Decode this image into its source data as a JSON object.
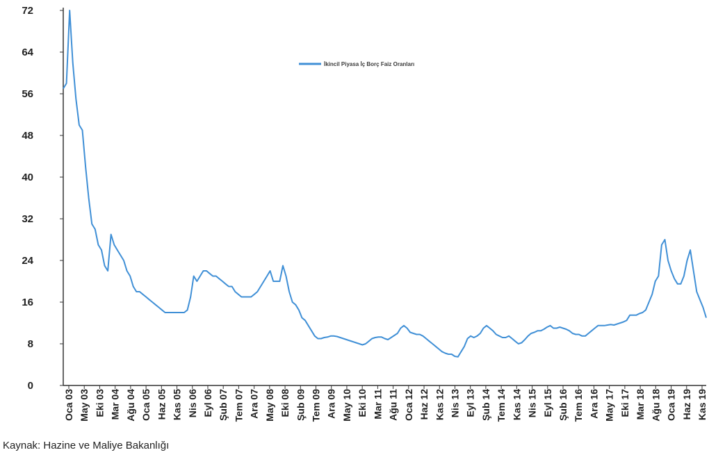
{
  "chart_data": {
    "type": "line",
    "title": "",
    "xlabel": "",
    "ylabel": "",
    "ylim": [
      0,
      72
    ],
    "yticks": [
      0,
      8,
      16,
      24,
      32,
      40,
      48,
      56,
      64,
      72
    ],
    "xlim": [
      "2003-01",
      "2019-11"
    ],
    "grid": false,
    "legend_position": "top-center",
    "x_tick_labels": [
      "Oca 03",
      "May 03",
      "Eki 03",
      "Mar 04",
      "Ağu 04",
      "Oca 05",
      "Haz 05",
      "Kas 05",
      "Nis 06",
      "Eyl 06",
      "Şub 07",
      "Tem 07",
      "Ara 07",
      "May 08",
      "Eki 08",
      "Şub 09",
      "Tem 09",
      "Ara 09",
      "May 10",
      "Eki 10",
      "Mar 11",
      "Ağu 11",
      "Oca 12",
      "Haz 12",
      "Kas 12",
      "Nis 13",
      "Eyl 13",
      "Şub 14",
      "Tem 14",
      "Kas 14",
      "Nis 15",
      "Eyl 15",
      "Şub 16",
      "Tem 16",
      "Ara 16",
      "May 17",
      "Eki 17",
      "Mar 18",
      "Ağu 18",
      "Oca 19",
      "Haz 19",
      "Kas 19"
    ],
    "series": [
      {
        "name": "İkincil Piyasa İç Borç Faiz Oranları",
        "color": "#3f8fd6",
        "points": [
          [
            "2003-01",
            57
          ],
          [
            "2003-02",
            58
          ],
          [
            "2003-03",
            72
          ],
          [
            "2003-04",
            62
          ],
          [
            "2003-05",
            55
          ],
          [
            "2003-06",
            50
          ],
          [
            "2003-07",
            49
          ],
          [
            "2003-08",
            42
          ],
          [
            "2003-09",
            36
          ],
          [
            "2003-10",
            31
          ],
          [
            "2003-11",
            30
          ],
          [
            "2003-12",
            27
          ],
          [
            "2004-01",
            26
          ],
          [
            "2004-02",
            23
          ],
          [
            "2004-03",
            22
          ],
          [
            "2004-04",
            29
          ],
          [
            "2004-05",
            27
          ],
          [
            "2004-06",
            26
          ],
          [
            "2004-07",
            25
          ],
          [
            "2004-08",
            24
          ],
          [
            "2004-09",
            22
          ],
          [
            "2004-10",
            21
          ],
          [
            "2004-11",
            19
          ],
          [
            "2004-12",
            18
          ],
          [
            "2005-01",
            18
          ],
          [
            "2005-02",
            17.5
          ],
          [
            "2005-03",
            17
          ],
          [
            "2005-04",
            16.5
          ],
          [
            "2005-05",
            16
          ],
          [
            "2005-06",
            15.5
          ],
          [
            "2005-07",
            15
          ],
          [
            "2005-08",
            14.5
          ],
          [
            "2005-09",
            14
          ],
          [
            "2005-10",
            14
          ],
          [
            "2005-11",
            14
          ],
          [
            "2005-12",
            14
          ],
          [
            "2006-01",
            14
          ],
          [
            "2006-02",
            14
          ],
          [
            "2006-03",
            14
          ],
          [
            "2006-04",
            14.5
          ],
          [
            "2006-05",
            17
          ],
          [
            "2006-06",
            21
          ],
          [
            "2006-07",
            20
          ],
          [
            "2006-08",
            21
          ],
          [
            "2006-09",
            22
          ],
          [
            "2006-10",
            22
          ],
          [
            "2006-11",
            21.5
          ],
          [
            "2006-12",
            21
          ],
          [
            "2007-01",
            21
          ],
          [
            "2007-02",
            20.5
          ],
          [
            "2007-03",
            20
          ],
          [
            "2007-04",
            19.5
          ],
          [
            "2007-05",
            19
          ],
          [
            "2007-06",
            19
          ],
          [
            "2007-07",
            18
          ],
          [
            "2007-08",
            17.5
          ],
          [
            "2007-09",
            17
          ],
          [
            "2007-10",
            17
          ],
          [
            "2007-11",
            17
          ],
          [
            "2007-12",
            17
          ],
          [
            "2008-01",
            17.5
          ],
          [
            "2008-02",
            18
          ],
          [
            "2008-03",
            19
          ],
          [
            "2008-04",
            20
          ],
          [
            "2008-05",
            21
          ],
          [
            "2008-06",
            22
          ],
          [
            "2008-07",
            20
          ],
          [
            "2008-08",
            20
          ],
          [
            "2008-09",
            20
          ],
          [
            "2008-10",
            23
          ],
          [
            "2008-11",
            21
          ],
          [
            "2008-12",
            18
          ],
          [
            "2009-01",
            16
          ],
          [
            "2009-02",
            15.5
          ],
          [
            "2009-03",
            14.5
          ],
          [
            "2009-04",
            13
          ],
          [
            "2009-05",
            12.5
          ],
          [
            "2009-06",
            11.5
          ],
          [
            "2009-07",
            10.5
          ],
          [
            "2009-08",
            9.5
          ],
          [
            "2009-09",
            9
          ],
          [
            "2009-10",
            9
          ],
          [
            "2009-11",
            9.2
          ],
          [
            "2009-12",
            9.3
          ],
          [
            "2010-01",
            9.5
          ],
          [
            "2010-02",
            9.5
          ],
          [
            "2010-03",
            9.4
          ],
          [
            "2010-04",
            9.2
          ],
          [
            "2010-05",
            9
          ],
          [
            "2010-06",
            8.8
          ],
          [
            "2010-07",
            8.6
          ],
          [
            "2010-08",
            8.4
          ],
          [
            "2010-09",
            8.2
          ],
          [
            "2010-10",
            8
          ],
          [
            "2010-11",
            7.8
          ],
          [
            "2010-12",
            8
          ],
          [
            "2011-01",
            8.5
          ],
          [
            "2011-02",
            9
          ],
          [
            "2011-03",
            9.2
          ],
          [
            "2011-04",
            9.3
          ],
          [
            "2011-05",
            9.3
          ],
          [
            "2011-06",
            9
          ],
          [
            "2011-07",
            8.8
          ],
          [
            "2011-08",
            9.2
          ],
          [
            "2011-09",
            9.6
          ],
          [
            "2011-10",
            10
          ],
          [
            "2011-11",
            11
          ],
          [
            "2011-12",
            11.5
          ],
          [
            "2012-01",
            11
          ],
          [
            "2012-02",
            10.2
          ],
          [
            "2012-03",
            10
          ],
          [
            "2012-04",
            9.8
          ],
          [
            "2012-05",
            9.8
          ],
          [
            "2012-06",
            9.5
          ],
          [
            "2012-07",
            9
          ],
          [
            "2012-08",
            8.5
          ],
          [
            "2012-09",
            8
          ],
          [
            "2012-10",
            7.5
          ],
          [
            "2012-11",
            7
          ],
          [
            "2012-12",
            6.5
          ],
          [
            "2013-01",
            6.2
          ],
          [
            "2013-02",
            6
          ],
          [
            "2013-03",
            6
          ],
          [
            "2013-04",
            5.6
          ],
          [
            "2013-05",
            5.5
          ],
          [
            "2013-06",
            6.5
          ],
          [
            "2013-07",
            7.5
          ],
          [
            "2013-08",
            9
          ],
          [
            "2013-09",
            9.5
          ],
          [
            "2013-10",
            9.2
          ],
          [
            "2013-11",
            9.5
          ],
          [
            "2013-12",
            10
          ],
          [
            "2014-01",
            11
          ],
          [
            "2014-02",
            11.5
          ],
          [
            "2014-03",
            11
          ],
          [
            "2014-04",
            10.5
          ],
          [
            "2014-05",
            9.8
          ],
          [
            "2014-06",
            9.5
          ],
          [
            "2014-07",
            9.2
          ],
          [
            "2014-08",
            9.2
          ],
          [
            "2014-09",
            9.5
          ],
          [
            "2014-10",
            9
          ],
          [
            "2014-11",
            8.5
          ],
          [
            "2014-12",
            8
          ],
          [
            "2015-01",
            8.2
          ],
          [
            "2015-02",
            8.8
          ],
          [
            "2015-03",
            9.5
          ],
          [
            "2015-04",
            10
          ],
          [
            "2015-05",
            10.2
          ],
          [
            "2015-06",
            10.5
          ],
          [
            "2015-07",
            10.5
          ],
          [
            "2015-08",
            10.8
          ],
          [
            "2015-09",
            11.2
          ],
          [
            "2015-10",
            11.5
          ],
          [
            "2015-11",
            11
          ],
          [
            "2015-12",
            11
          ],
          [
            "2016-01",
            11.2
          ],
          [
            "2016-02",
            11
          ],
          [
            "2016-03",
            10.8
          ],
          [
            "2016-04",
            10.5
          ],
          [
            "2016-05",
            10
          ],
          [
            "2016-06",
            9.8
          ],
          [
            "2016-07",
            9.8
          ],
          [
            "2016-08",
            9.5
          ],
          [
            "2016-09",
            9.5
          ],
          [
            "2016-10",
            10
          ],
          [
            "2016-11",
            10.5
          ],
          [
            "2016-12",
            11
          ],
          [
            "2017-01",
            11.5
          ],
          [
            "2017-02",
            11.5
          ],
          [
            "2017-03",
            11.5
          ],
          [
            "2017-04",
            11.6
          ],
          [
            "2017-05",
            11.7
          ],
          [
            "2017-06",
            11.6
          ],
          [
            "2017-07",
            11.8
          ],
          [
            "2017-08",
            12
          ],
          [
            "2017-09",
            12.2
          ],
          [
            "2017-10",
            12.5
          ],
          [
            "2017-11",
            13.5
          ],
          [
            "2017-12",
            13.5
          ],
          [
            "2018-01",
            13.5
          ],
          [
            "2018-02",
            13.8
          ],
          [
            "2018-03",
            14
          ],
          [
            "2018-04",
            14.5
          ],
          [
            "2018-05",
            16
          ],
          [
            "2018-06",
            17.5
          ],
          [
            "2018-07",
            20
          ],
          [
            "2018-08",
            21
          ],
          [
            "2018-09",
            27
          ],
          [
            "2018-10",
            28
          ],
          [
            "2018-11",
            24
          ],
          [
            "2018-12",
            22
          ],
          [
            "2019-01",
            20.5
          ],
          [
            "2019-02",
            19.5
          ],
          [
            "2019-03",
            19.5
          ],
          [
            "2019-04",
            21
          ],
          [
            "2019-05",
            24
          ],
          [
            "2019-06",
            26
          ],
          [
            "2019-07",
            22
          ],
          [
            "2019-08",
            18
          ],
          [
            "2019-09",
            16.5
          ],
          [
            "2019-10",
            15
          ],
          [
            "2019-11",
            13
          ]
        ]
      }
    ]
  },
  "source": "Kaynak: Hazine ve Maliye Bakanlığı"
}
